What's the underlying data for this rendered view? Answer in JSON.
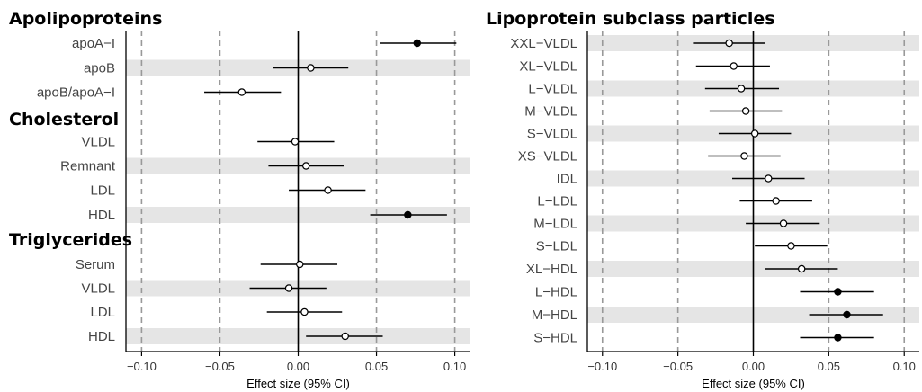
{
  "chart_data": [
    {
      "type": "forest",
      "xlabel": "Effect size (95% CI)",
      "xlim": [
        -0.11,
        0.11
      ],
      "xticks": [
        -0.1,
        -0.05,
        0.0,
        0.05,
        0.1
      ],
      "xtick_labels": [
        "−0.10",
        "−0.05",
        "0.00",
        "0.05",
        "0.10"
      ],
      "dashed_reference_lines": [
        -0.1,
        -0.05,
        0.05,
        0.1
      ],
      "solid_reference_line": 0.0,
      "groups": [
        {
          "title": "Apolipoproteins",
          "rows": [
            {
              "label": "apoA−I",
              "estimate": 0.076,
              "lower": 0.052,
              "upper": 0.101,
              "significant": true
            },
            {
              "label": "apoB",
              "estimate": 0.008,
              "lower": -0.016,
              "upper": 0.032,
              "significant": false
            },
            {
              "label": "apoB/apoA−I",
              "estimate": -0.036,
              "lower": -0.06,
              "upper": -0.011,
              "significant": false
            }
          ]
        },
        {
          "title": "Cholesterol",
          "rows": [
            {
              "label": "VLDL",
              "estimate": -0.002,
              "lower": -0.026,
              "upper": 0.023,
              "significant": false
            },
            {
              "label": "Remnant",
              "estimate": 0.005,
              "lower": -0.019,
              "upper": 0.029,
              "significant": false
            },
            {
              "label": "LDL",
              "estimate": 0.019,
              "lower": -0.006,
              "upper": 0.043,
              "significant": false
            },
            {
              "label": "HDL",
              "estimate": 0.07,
              "lower": 0.046,
              "upper": 0.095,
              "significant": true
            }
          ]
        },
        {
          "title": "Triglycerides",
          "rows": [
            {
              "label": "Serum",
              "estimate": 0.001,
              "lower": -0.024,
              "upper": 0.025,
              "significant": false
            },
            {
              "label": "VLDL",
              "estimate": -0.006,
              "lower": -0.031,
              "upper": 0.018,
              "significant": false
            },
            {
              "label": "LDL",
              "estimate": 0.004,
              "lower": -0.02,
              "upper": 0.028,
              "significant": false
            },
            {
              "label": "HDL",
              "estimate": 0.03,
              "lower": 0.005,
              "upper": 0.054,
              "significant": false
            }
          ]
        }
      ]
    },
    {
      "type": "forest",
      "xlabel": "Effect size (95% CI)",
      "xlim": [
        -0.11,
        0.11
      ],
      "xticks": [
        -0.1,
        -0.05,
        0.0,
        0.05,
        0.1
      ],
      "xtick_labels": [
        "−0.10",
        "−0.05",
        "0.00",
        "0.05",
        "0.10"
      ],
      "dashed_reference_lines": [
        -0.1,
        -0.05,
        0.05,
        0.1
      ],
      "solid_reference_line": 0.0,
      "groups": [
        {
          "title": "Lipoprotein subclass particles",
          "rows": [
            {
              "label": "XXL−VLDL",
              "estimate": -0.016,
              "lower": -0.04,
              "upper": 0.008,
              "significant": false
            },
            {
              "label": "XL−VLDL",
              "estimate": -0.013,
              "lower": -0.038,
              "upper": 0.011,
              "significant": false
            },
            {
              "label": "L−VLDL",
              "estimate": -0.008,
              "lower": -0.032,
              "upper": 0.017,
              "significant": false
            },
            {
              "label": "M−VLDL",
              "estimate": -0.005,
              "lower": -0.029,
              "upper": 0.019,
              "significant": false
            },
            {
              "label": "S−VLDL",
              "estimate": 0.001,
              "lower": -0.023,
              "upper": 0.025,
              "significant": false
            },
            {
              "label": "XS−VLDL",
              "estimate": -0.006,
              "lower": -0.03,
              "upper": 0.018,
              "significant": false
            },
            {
              "label": "IDL",
              "estimate": 0.01,
              "lower": -0.014,
              "upper": 0.034,
              "significant": false
            },
            {
              "label": "L−LDL",
              "estimate": 0.015,
              "lower": -0.009,
              "upper": 0.039,
              "significant": false
            },
            {
              "label": "M−LDL",
              "estimate": 0.02,
              "lower": -0.005,
              "upper": 0.044,
              "significant": false
            },
            {
              "label": "S−LDL",
              "estimate": 0.025,
              "lower": 0.001,
              "upper": 0.049,
              "significant": false
            },
            {
              "label": "XL−HDL",
              "estimate": 0.032,
              "lower": 0.008,
              "upper": 0.056,
              "significant": false
            },
            {
              "label": "L−HDL",
              "estimate": 0.056,
              "lower": 0.031,
              "upper": 0.08,
              "significant": true
            },
            {
              "label": "M−HDL",
              "estimate": 0.062,
              "lower": 0.037,
              "upper": 0.086,
              "significant": true
            },
            {
              "label": "S−HDL",
              "estimate": 0.056,
              "lower": 0.031,
              "upper": 0.08,
              "significant": true
            }
          ]
        }
      ]
    }
  ],
  "colors": {
    "stripe": "#e5e5e5",
    "dashed_line": "#999999",
    "zero_line": "#000000",
    "ci_line": "#000000",
    "point_significant": "#000000",
    "point_nonsignificant": "#ffffff",
    "point_stroke": "#000000"
  }
}
